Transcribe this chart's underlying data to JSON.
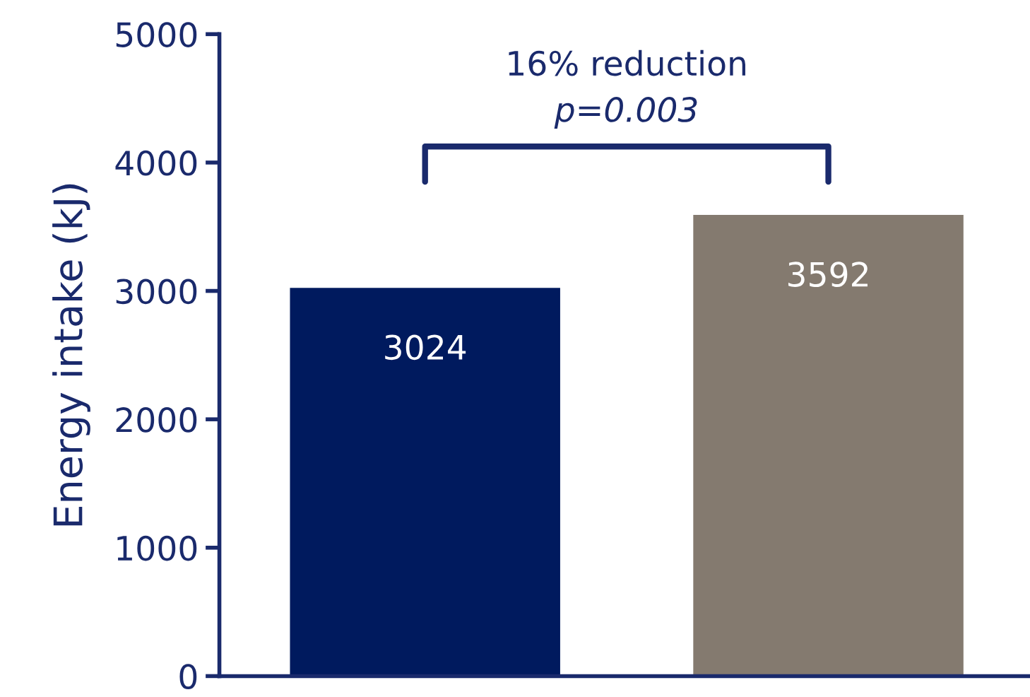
{
  "chart_data": {
    "type": "bar",
    "ylabel": "Energy intake (kJ)",
    "categories": [
      null,
      null
    ],
    "values": [
      3024,
      3592
    ],
    "colors": [
      "#001a5e",
      "#847a6f"
    ],
    "ylim": [
      0,
      5000
    ],
    "yticks": [
      0,
      1000,
      2000,
      3000,
      4000,
      5000
    ],
    "data_labels": true,
    "grid": false,
    "legend": false,
    "annotations": [
      "16% reduction",
      "p=0.003"
    ]
  }
}
